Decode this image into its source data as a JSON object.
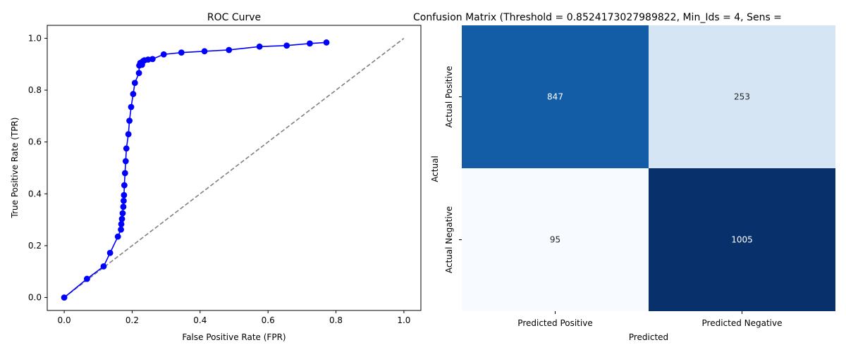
{
  "figure": {
    "background": "#ffffff"
  },
  "chart_data": [
    {
      "type": "line",
      "title": "ROC Curve",
      "xlabel": "False Positive Rate (FPR)",
      "ylabel": "True Positive Rate (TPR)",
      "xlim": [
        -0.05,
        1.05
      ],
      "ylim": [
        -0.05,
        1.05
      ],
      "xticks": [
        0.0,
        0.2,
        0.4,
        0.6,
        0.8,
        1.0
      ],
      "xtick_labels": [
        "0.0",
        "0.2",
        "0.4",
        "0.6",
        "0.8",
        "1.0"
      ],
      "yticks": [
        0.0,
        0.2,
        0.4,
        0.6,
        0.8,
        1.0
      ],
      "ytick_labels": [
        "0.0",
        "0.2",
        "0.4",
        "0.6",
        "0.8",
        "1.0"
      ],
      "grid": false,
      "series": [
        {
          "color": "#0000ff",
          "marker": "circle",
          "x": [
            0.0,
            0.067,
            0.116,
            0.135,
            0.158,
            0.167,
            0.168,
            0.17,
            0.172,
            0.174,
            0.175,
            0.176,
            0.177,
            0.179,
            0.181,
            0.183,
            0.189,
            0.192,
            0.197,
            0.203,
            0.208,
            0.22,
            0.221,
            0.224,
            0.229,
            0.232,
            0.236,
            0.247,
            0.26,
            0.293,
            0.345,
            0.413,
            0.485,
            0.575,
            0.655,
            0.723,
            0.772
          ],
          "y": [
            0.0,
            0.072,
            0.12,
            0.172,
            0.235,
            0.262,
            0.283,
            0.303,
            0.325,
            0.35,
            0.373,
            0.395,
            0.433,
            0.48,
            0.526,
            0.575,
            0.63,
            0.682,
            0.735,
            0.785,
            0.828,
            0.866,
            0.895,
            0.905,
            0.898,
            0.912,
            0.915,
            0.918,
            0.92,
            0.938,
            0.945,
            0.95,
            0.955,
            0.968,
            0.972,
            0.98,
            0.984
          ]
        },
        {
          "style": "dashed",
          "color": "#808080",
          "x": [
            0.0,
            1.0
          ],
          "y": [
            0.0,
            1.0
          ]
        }
      ]
    },
    {
      "type": "heatmap",
      "title": "Confusion Matrix (Threshold = 0.8524173027989822, Min_Ids = 4, Sens = ",
      "xlabel": "Predicted",
      "ylabel": "Actual",
      "x_categories": [
        "Predicted Positive",
        "Predicted Negative"
      ],
      "y_categories": [
        "Actual Positive",
        "Actual Negative"
      ],
      "values": [
        [
          847,
          253
        ],
        [
          95,
          1005
        ]
      ],
      "colormap": "Blues",
      "vmin": 95,
      "vmax": 1005,
      "colorbar": false
    }
  ]
}
